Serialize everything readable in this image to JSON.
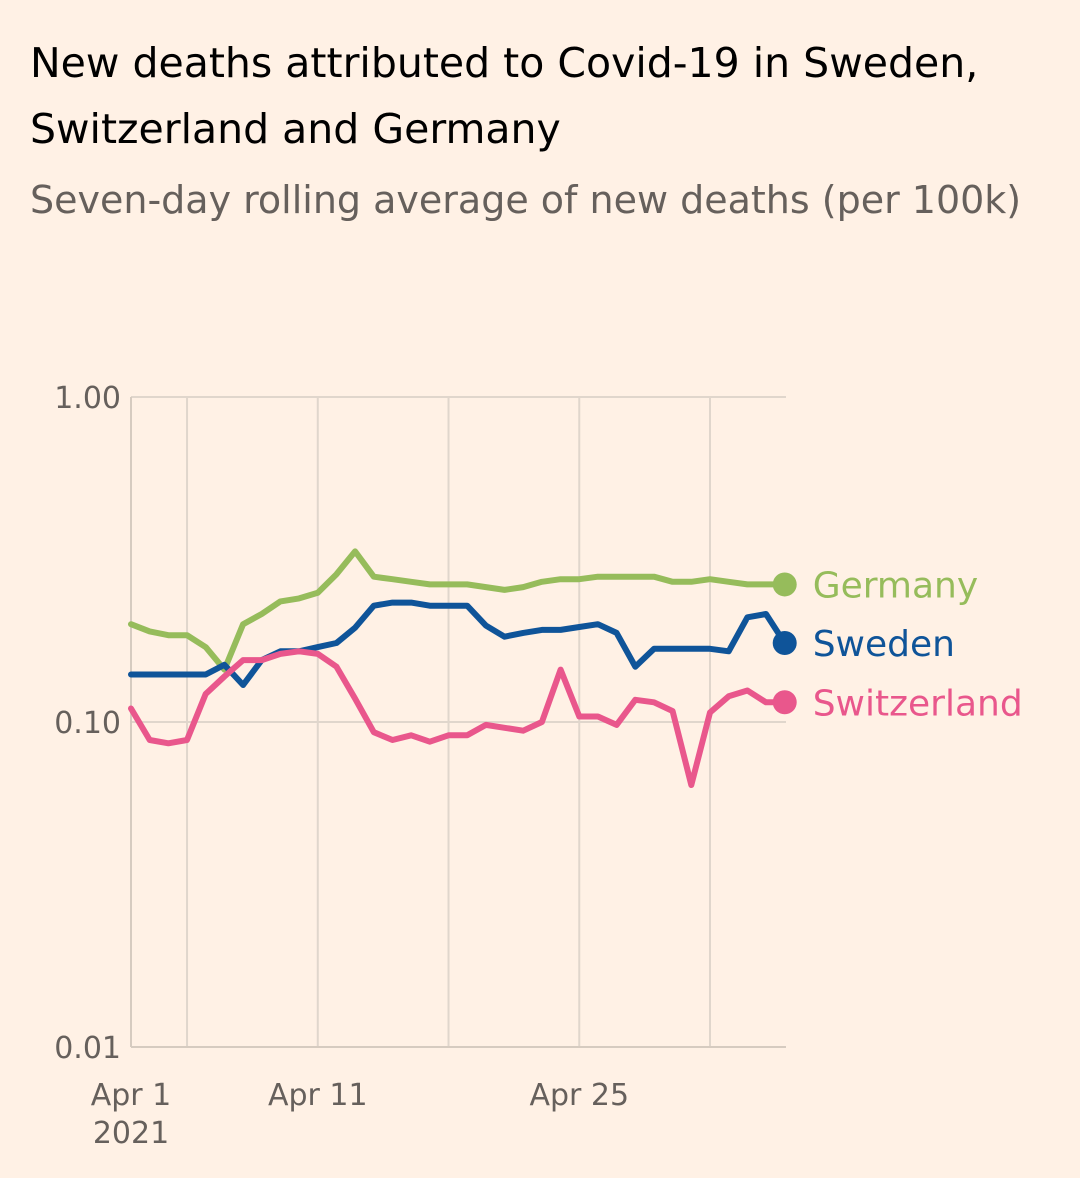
{
  "title": "New deaths attributed to Covid-19 in Sweden, Switzerland and Germany",
  "subtitle": "Seven-day rolling average of new deaths (per 100k)",
  "chart_data": {
    "type": "line",
    "title": "New deaths attributed to Covid-19 in Sweden, Switzerland and Germany",
    "subtitle": "Seven-day rolling average of new deaths (per 100k)",
    "xlabel": "",
    "ylabel": "",
    "yscale": "log",
    "ylim": [
      0.01,
      1.0
    ],
    "xlim": [
      0,
      35
    ],
    "grid": true,
    "y_ticks": [
      {
        "value": 1.0,
        "label": "1.00"
      },
      {
        "value": 0.1,
        "label": "0.10"
      },
      {
        "value": 0.01,
        "label": "0.01"
      }
    ],
    "x_ticks": [
      {
        "value": 0,
        "label": "Apr 1",
        "sublabel": "2021"
      },
      {
        "value": 10,
        "label": "Apr 11",
        "sublabel": ""
      },
      {
        "value": 24,
        "label": "Apr 25",
        "sublabel": ""
      }
    ],
    "x_gridlines": [
      3,
      10,
      17,
      24,
      31
    ],
    "x_note": "x = days since Apr 1 2021",
    "series": [
      {
        "name": "Germany",
        "color": "#96bc5b",
        "x": [
          0,
          1,
          2,
          3,
          4,
          5,
          6,
          7,
          8,
          9,
          10,
          11,
          12,
          13,
          14,
          15,
          16,
          17,
          18,
          19,
          20,
          21,
          22,
          23,
          24,
          25,
          26,
          27,
          28,
          29,
          30,
          31,
          32,
          33,
          34,
          35
        ],
        "values": [
          0.2,
          0.19,
          0.185,
          0.185,
          0.17,
          0.145,
          0.2,
          0.215,
          0.235,
          0.24,
          0.25,
          0.285,
          0.335,
          0.28,
          0.275,
          0.27,
          0.265,
          0.265,
          0.265,
          0.26,
          0.255,
          0.26,
          0.27,
          0.275,
          0.275,
          0.28,
          0.28,
          0.28,
          0.28,
          0.27,
          0.27,
          0.275,
          0.27,
          0.265,
          0.265,
          0.265
        ]
      },
      {
        "name": "Sweden",
        "color": "#0f5499",
        "x": [
          0,
          1,
          2,
          3,
          4,
          5,
          6,
          7,
          8,
          9,
          10,
          11,
          12,
          13,
          14,
          15,
          16,
          17,
          18,
          19,
          20,
          21,
          22,
          23,
          24,
          25,
          26,
          27,
          28,
          29,
          30,
          31,
          32,
          33,
          34,
          35
        ],
        "values": [
          0.14,
          0.14,
          0.14,
          0.14,
          0.14,
          0.15,
          0.13,
          0.155,
          0.165,
          0.165,
          0.17,
          0.175,
          0.195,
          0.228,
          0.233,
          0.233,
          0.228,
          0.228,
          0.228,
          0.198,
          0.183,
          0.188,
          0.192,
          0.192,
          0.196,
          0.2,
          0.188,
          0.148,
          0.168,
          0.168,
          0.168,
          0.168,
          0.165,
          0.21,
          0.215,
          0.175
        ]
      },
      {
        "name": "Switzerland",
        "color": "#e9578c",
        "x": [
          0,
          1,
          2,
          3,
          4,
          5,
          6,
          7,
          8,
          9,
          10,
          11,
          12,
          13,
          14,
          15,
          16,
          17,
          18,
          19,
          20,
          21,
          22,
          23,
          24,
          25,
          26,
          27,
          28,
          29,
          30,
          31,
          32,
          33,
          34,
          35
        ],
        "values": [
          0.11,
          0.088,
          0.086,
          0.088,
          0.122,
          0.138,
          0.155,
          0.155,
          0.162,
          0.165,
          0.162,
          0.148,
          0.118,
          0.093,
          0.088,
          0.091,
          0.087,
          0.091,
          0.091,
          0.098,
          0.096,
          0.094,
          0.1,
          0.145,
          0.104,
          0.104,
          0.098,
          0.117,
          0.115,
          0.108,
          0.064,
          0.107,
          0.12,
          0.125,
          0.115,
          0.115
        ]
      }
    ]
  }
}
